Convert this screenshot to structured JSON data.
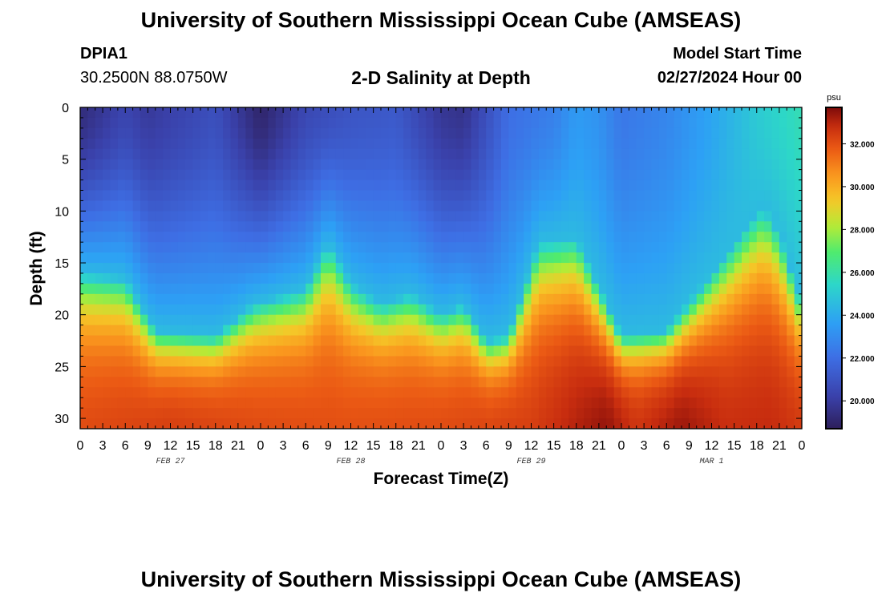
{
  "header": {
    "title": "University of Southern Mississippi Ocean Cube (AMSEAS)",
    "station_id": "DPIA1",
    "station_coords": "30.2500N  88.0750W",
    "plot_name": "2-D Salinity at Depth",
    "model_start_label": "Model Start Time",
    "model_start_value": "02/27/2024 Hour 00"
  },
  "footer": {
    "title": "University of Southern Mississippi Ocean Cube (AMSEAS)"
  },
  "colors": {
    "low": "#2d1e5a",
    "mid": "#35d8a8",
    "high": "#7f0a0a"
  },
  "chart_data": {
    "type": "heatmap",
    "title": "2-D Salinity at Depth",
    "xlabel": "Forecast Time(Z)",
    "ylabel": "Depth (ft)",
    "x_hours": [
      0,
      96
    ],
    "x_tick_step_hours": 3,
    "x_tick_labels": [
      "0",
      "3",
      "6",
      "9",
      "12",
      "15",
      "18",
      "21",
      "0",
      "3",
      "6",
      "9",
      "12",
      "15",
      "18",
      "21",
      "0",
      "3",
      "6",
      "9",
      "12",
      "15",
      "18",
      "21",
      "0",
      "3",
      "6",
      "9",
      "12",
      "15",
      "18",
      "21",
      "0"
    ],
    "date_labels": [
      {
        "label": "FEB 27",
        "hour": 12
      },
      {
        "label": "FEB 28",
        "hour": 36
      },
      {
        "label": "FEB 29",
        "hour": 60
      },
      {
        "label": "MAR 1",
        "hour": 84
      }
    ],
    "ylim": [
      0,
      31
    ],
    "y_ticks": [
      0,
      5,
      10,
      15,
      20,
      25,
      30
    ],
    "y_tick_labels": [
      "0",
      "5",
      "10",
      "15",
      "20",
      "25",
      "30"
    ],
    "colorbar": {
      "unit": "psu",
      "vmin": 18.7,
      "vmax": 33.7,
      "ticks": [
        20,
        22,
        24,
        26,
        28,
        30,
        32
      ],
      "tick_labels": [
        "20.000",
        "22.000",
        "24.000",
        "26.000",
        "28.000",
        "30.000",
        "32.000"
      ]
    },
    "halocline_depth_ft": [
      {
        "hour": 0,
        "depth": 16
      },
      {
        "hour": 6,
        "depth": 16.5
      },
      {
        "hour": 10,
        "depth": 21.5
      },
      {
        "hour": 18,
        "depth": 22
      },
      {
        "hour": 23,
        "depth": 19
      },
      {
        "hour": 30,
        "depth": 17.5
      },
      {
        "hour": 33,
        "depth": 13
      },
      {
        "hour": 36,
        "depth": 17
      },
      {
        "hour": 40,
        "depth": 19
      },
      {
        "hour": 44,
        "depth": 18
      },
      {
        "hour": 48,
        "depth": 20
      },
      {
        "hour": 51,
        "depth": 19
      },
      {
        "hour": 54,
        "depth": 22.5
      },
      {
        "hour": 57,
        "depth": 22
      },
      {
        "hour": 61,
        "depth": 13
      },
      {
        "hour": 66,
        "depth": 12.5
      },
      {
        "hour": 72,
        "depth": 22
      },
      {
        "hour": 78,
        "depth": 21.5
      },
      {
        "hour": 84,
        "depth": 16
      },
      {
        "hour": 89,
        "depth": 11
      },
      {
        "hour": 91,
        "depth": 9.5
      },
      {
        "hour": 93,
        "depth": 12
      },
      {
        "hour": 96,
        "depth": 19
      }
    ],
    "surface_salinity_psu": [
      {
        "hour": 0,
        "value": 19.3
      },
      {
        "hour": 6,
        "value": 20.4
      },
      {
        "hour": 9,
        "value": 19.9
      },
      {
        "hour": 12,
        "value": 20.2
      },
      {
        "hour": 18,
        "value": 20.8
      },
      {
        "hour": 24,
        "value": 19.0
      },
      {
        "hour": 30,
        "value": 20.5
      },
      {
        "hour": 36,
        "value": 21.0
      },
      {
        "hour": 42,
        "value": 21.2
      },
      {
        "hour": 48,
        "value": 19.8
      },
      {
        "hour": 51,
        "value": 19.6
      },
      {
        "hour": 57,
        "value": 22.0
      },
      {
        "hour": 63,
        "value": 22.6
      },
      {
        "hour": 66,
        "value": 23.5
      },
      {
        "hour": 69,
        "value": 23.2
      },
      {
        "hour": 72,
        "value": 22.3
      },
      {
        "hour": 78,
        "value": 22.8
      },
      {
        "hour": 84,
        "value": 23.8
      },
      {
        "hour": 90,
        "value": 25.0
      },
      {
        "hour": 96,
        "value": 25.8
      }
    ],
    "bottom_salinity_psu": [
      {
        "hour": 0,
        "value": 32.3
      },
      {
        "hour": 12,
        "value": 32.6
      },
      {
        "hour": 24,
        "value": 32.3
      },
      {
        "hour": 36,
        "value": 32.2
      },
      {
        "hour": 48,
        "value": 32.3
      },
      {
        "hour": 60,
        "value": 32.6
      },
      {
        "hour": 66,
        "value": 33.3
      },
      {
        "hour": 70,
        "value": 33.7
      },
      {
        "hour": 74,
        "value": 32.8
      },
      {
        "hour": 80,
        "value": 33.6
      },
      {
        "hour": 86,
        "value": 33.0
      },
      {
        "hour": 92,
        "value": 33.1
      },
      {
        "hour": 96,
        "value": 32.7
      }
    ]
  }
}
